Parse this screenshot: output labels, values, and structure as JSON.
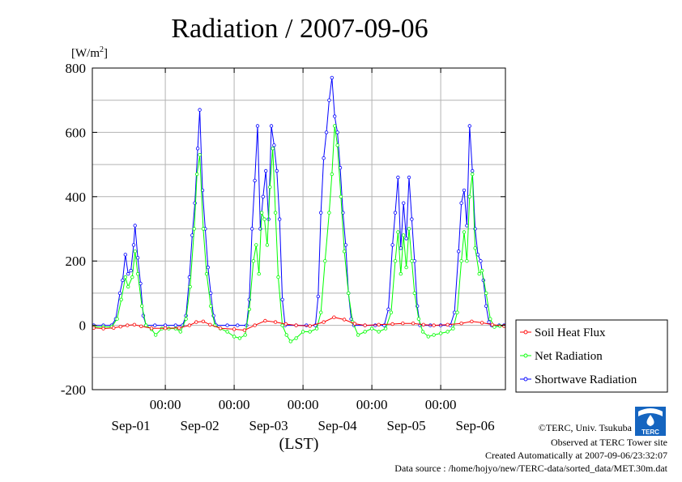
{
  "chart_data": {
    "type": "line",
    "title": "Radiation / 2007-09-06",
    "ylabel_base": "[W/m",
    "ylabel_sup": "2",
    "ylabel_end": "]",
    "xlabel": "(LST)",
    "ylim": [
      -200,
      800
    ],
    "yticks": [
      800,
      600,
      400,
      200,
      0,
      -200
    ],
    "x_range_days": [
      -0.06,
      5.94
    ],
    "xticks": [
      {
        "x": 1,
        "label": "00:00",
        "date": "Sep-02"
      },
      {
        "x": 2,
        "label": "00:00",
        "date": "Sep-03"
      },
      {
        "x": 3,
        "label": "00:00",
        "date": "Sep-04"
      },
      {
        "x": 4,
        "label": "00:00",
        "date": "Sep-05"
      },
      {
        "x": 5,
        "label": "00:00",
        "date": "Sep-06"
      }
    ],
    "date_labels": [
      {
        "x": 0.5,
        "label": "Sep-01"
      },
      {
        "x": 1.5,
        "label": "Sep-02"
      },
      {
        "x": 2.5,
        "label": "Sep-03"
      },
      {
        "x": 3.5,
        "label": "Sep-04"
      },
      {
        "x": 4.5,
        "label": "Sep-05"
      },
      {
        "x": 5.5,
        "label": "Sep-06"
      }
    ],
    "grid": true,
    "legend_position": "right-bottom",
    "series": [
      {
        "name": "Soil Heat Flux",
        "color": "#ff0000",
        "points": [
          [
            -0.04,
            -8
          ],
          [
            0.1,
            -10
          ],
          [
            0.25,
            -8
          ],
          [
            0.35,
            -4
          ],
          [
            0.45,
            0
          ],
          [
            0.55,
            2
          ],
          [
            0.65,
            -3
          ],
          [
            0.8,
            -9
          ],
          [
            1.0,
            -9
          ],
          [
            1.2,
            -8
          ],
          [
            1.35,
            0
          ],
          [
            1.45,
            10
          ],
          [
            1.55,
            12
          ],
          [
            1.65,
            2
          ],
          [
            1.8,
            -9
          ],
          [
            2.0,
            -12
          ],
          [
            2.15,
            -15
          ],
          [
            2.3,
            0
          ],
          [
            2.45,
            14
          ],
          [
            2.6,
            10
          ],
          [
            2.75,
            4
          ],
          [
            2.9,
            0
          ],
          [
            3.1,
            -2
          ],
          [
            3.3,
            10
          ],
          [
            3.45,
            25
          ],
          [
            3.6,
            18
          ],
          [
            3.75,
            5
          ],
          [
            3.9,
            0
          ],
          [
            4.1,
            2
          ],
          [
            4.3,
            4
          ],
          [
            4.45,
            6
          ],
          [
            4.6,
            6
          ],
          [
            4.75,
            2
          ],
          [
            4.9,
            0
          ],
          [
            5.1,
            2
          ],
          [
            5.3,
            6
          ],
          [
            5.45,
            12
          ],
          [
            5.6,
            8
          ],
          [
            5.75,
            2
          ],
          [
            5.92,
            -2
          ]
        ]
      },
      {
        "name": "Net Radiation",
        "color": "#00ff00",
        "points": [
          [
            -0.04,
            -5
          ],
          [
            0.1,
            -5
          ],
          [
            0.22,
            -5
          ],
          [
            0.3,
            20
          ],
          [
            0.36,
            80
          ],
          [
            0.42,
            150
          ],
          [
            0.46,
            120
          ],
          [
            0.52,
            150
          ],
          [
            0.56,
            230
          ],
          [
            0.6,
            160
          ],
          [
            0.66,
            60
          ],
          [
            0.72,
            0
          ],
          [
            0.8,
            -12
          ],
          [
            0.86,
            -30
          ],
          [
            0.95,
            -10
          ],
          [
            1.05,
            -10
          ],
          [
            1.15,
            -10
          ],
          [
            1.22,
            -20
          ],
          [
            1.3,
            20
          ],
          [
            1.36,
            120
          ],
          [
            1.42,
            300
          ],
          [
            1.46,
            470
          ],
          [
            1.5,
            530
          ],
          [
            1.55,
            300
          ],
          [
            1.6,
            160
          ],
          [
            1.66,
            60
          ],
          [
            1.72,
            0
          ],
          [
            1.8,
            -10
          ],
          [
            1.9,
            -20
          ],
          [
            2.0,
            -35
          ],
          [
            2.08,
            -40
          ],
          [
            2.16,
            -30
          ],
          [
            2.22,
            50
          ],
          [
            2.28,
            200
          ],
          [
            2.32,
            250
          ],
          [
            2.36,
            160
          ],
          [
            2.4,
            350
          ],
          [
            2.44,
            330
          ],
          [
            2.48,
            250
          ],
          [
            2.52,
            430
          ],
          [
            2.56,
            550
          ],
          [
            2.6,
            350
          ],
          [
            2.64,
            150
          ],
          [
            2.7,
            0
          ],
          [
            2.76,
            -30
          ],
          [
            2.82,
            -50
          ],
          [
            2.9,
            -40
          ],
          [
            3.0,
            -20
          ],
          [
            3.1,
            -20
          ],
          [
            3.2,
            -10
          ],
          [
            3.26,
            40
          ],
          [
            3.32,
            200
          ],
          [
            3.38,
            350
          ],
          [
            3.42,
            470
          ],
          [
            3.46,
            620
          ],
          [
            3.5,
            560
          ],
          [
            3.55,
            400
          ],
          [
            3.6,
            230
          ],
          [
            3.66,
            100
          ],
          [
            3.72,
            10
          ],
          [
            3.8,
            -30
          ],
          [
            3.9,
            -20
          ],
          [
            4.0,
            -10
          ],
          [
            4.1,
            -20
          ],
          [
            4.2,
            -10
          ],
          [
            4.28,
            40
          ],
          [
            4.34,
            200
          ],
          [
            4.38,
            290
          ],
          [
            4.42,
            160
          ],
          [
            4.46,
            280
          ],
          [
            4.5,
            180
          ],
          [
            4.54,
            300
          ],
          [
            4.58,
            200
          ],
          [
            4.62,
            100
          ],
          [
            4.68,
            20
          ],
          [
            4.74,
            -20
          ],
          [
            4.82,
            -35
          ],
          [
            4.9,
            -30
          ],
          [
            5.0,
            -25
          ],
          [
            5.1,
            -20
          ],
          [
            5.18,
            -10
          ],
          [
            5.24,
            40
          ],
          [
            5.3,
            200
          ],
          [
            5.34,
            290
          ],
          [
            5.38,
            200
          ],
          [
            5.42,
            400
          ],
          [
            5.46,
            470
          ],
          [
            5.5,
            240
          ],
          [
            5.56,
            160
          ],
          [
            5.6,
            170
          ],
          [
            5.66,
            100
          ],
          [
            5.72,
            20
          ],
          [
            5.78,
            -5
          ],
          [
            5.86,
            -2
          ],
          [
            5.92,
            -2
          ]
        ]
      },
      {
        "name": "Shortwave Radiation",
        "color": "#0000ff",
        "points": [
          [
            -0.04,
            0
          ],
          [
            0.1,
            0
          ],
          [
            0.22,
            0
          ],
          [
            0.28,
            20
          ],
          [
            0.34,
            100
          ],
          [
            0.38,
            140
          ],
          [
            0.42,
            220
          ],
          [
            0.46,
            160
          ],
          [
            0.5,
            170
          ],
          [
            0.54,
            250
          ],
          [
            0.56,
            310
          ],
          [
            0.6,
            210
          ],
          [
            0.64,
            130
          ],
          [
            0.68,
            30
          ],
          [
            0.72,
            0
          ],
          [
            0.85,
            0
          ],
          [
            1.0,
            0
          ],
          [
            1.15,
            0
          ],
          [
            1.25,
            0
          ],
          [
            1.3,
            30
          ],
          [
            1.35,
            150
          ],
          [
            1.39,
            280
          ],
          [
            1.43,
            380
          ],
          [
            1.47,
            550
          ],
          [
            1.5,
            670
          ],
          [
            1.54,
            420
          ],
          [
            1.58,
            300
          ],
          [
            1.62,
            180
          ],
          [
            1.66,
            100
          ],
          [
            1.7,
            30
          ],
          [
            1.74,
            0
          ],
          [
            1.9,
            0
          ],
          [
            2.05,
            0
          ],
          [
            2.18,
            0
          ],
          [
            2.22,
            80
          ],
          [
            2.26,
            300
          ],
          [
            2.3,
            450
          ],
          [
            2.34,
            620
          ],
          [
            2.38,
            300
          ],
          [
            2.42,
            400
          ],
          [
            2.46,
            480
          ],
          [
            2.5,
            330
          ],
          [
            2.54,
            620
          ],
          [
            2.58,
            560
          ],
          [
            2.62,
            480
          ],
          [
            2.66,
            330
          ],
          [
            2.7,
            80
          ],
          [
            2.74,
            0
          ],
          [
            2.9,
            0
          ],
          [
            3.05,
            0
          ],
          [
            3.18,
            0
          ],
          [
            3.22,
            90
          ],
          [
            3.26,
            350
          ],
          [
            3.3,
            520
          ],
          [
            3.34,
            600
          ],
          [
            3.38,
            700
          ],
          [
            3.42,
            770
          ],
          [
            3.46,
            650
          ],
          [
            3.5,
            600
          ],
          [
            3.54,
            490
          ],
          [
            3.58,
            350
          ],
          [
            3.62,
            250
          ],
          [
            3.66,
            100
          ],
          [
            3.7,
            20
          ],
          [
            3.74,
            0
          ],
          [
            3.9,
            0
          ],
          [
            4.05,
            0
          ],
          [
            4.18,
            0
          ],
          [
            4.24,
            50
          ],
          [
            4.3,
            250
          ],
          [
            4.34,
            350
          ],
          [
            4.38,
            460
          ],
          [
            4.42,
            240
          ],
          [
            4.46,
            380
          ],
          [
            4.5,
            270
          ],
          [
            4.54,
            460
          ],
          [
            4.58,
            330
          ],
          [
            4.62,
            200
          ],
          [
            4.66,
            60
          ],
          [
            4.7,
            0
          ],
          [
            4.85,
            0
          ],
          [
            5.0,
            0
          ],
          [
            5.14,
            0
          ],
          [
            5.2,
            40
          ],
          [
            5.26,
            230
          ],
          [
            5.3,
            380
          ],
          [
            5.34,
            420
          ],
          [
            5.38,
            310
          ],
          [
            5.42,
            620
          ],
          [
            5.46,
            480
          ],
          [
            5.5,
            300
          ],
          [
            5.54,
            220
          ],
          [
            5.58,
            200
          ],
          [
            5.62,
            140
          ],
          [
            5.66,
            60
          ],
          [
            5.7,
            10
          ],
          [
            5.74,
            0
          ],
          [
            5.85,
            0
          ],
          [
            5.92,
            0
          ]
        ]
      }
    ]
  },
  "footer": {
    "copyright": "©TERC, Univ. Tsukuba",
    "observed": "Observed at TERC Tower site",
    "created": "Created Automatically at 2007-09-06/23:32:07",
    "source": "Data source : /home/hojyo/new/TERC-data/sorted_data/MET.30m.dat",
    "logo_text": "TERC"
  }
}
